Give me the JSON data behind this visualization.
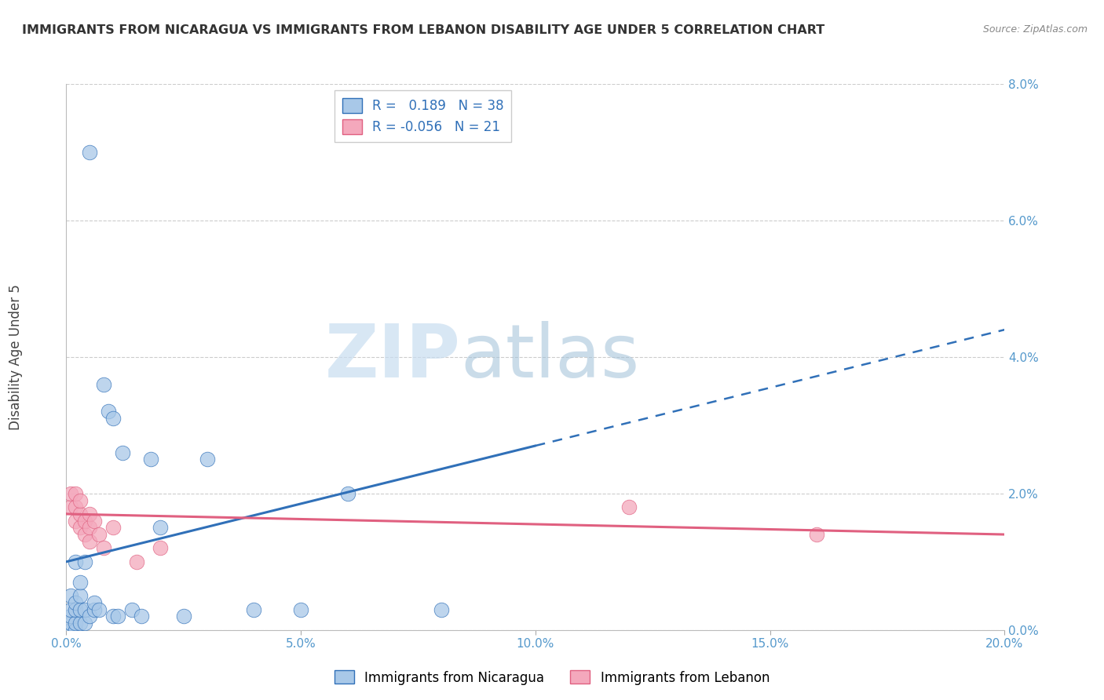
{
  "title": "IMMIGRANTS FROM NICARAGUA VS IMMIGRANTS FROM LEBANON DISABILITY AGE UNDER 5 CORRELATION CHART",
  "source": "Source: ZipAtlas.com",
  "ylabel": "Disability Age Under 5",
  "legend_labels": [
    "Immigrants from Nicaragua",
    "Immigrants from Lebanon"
  ],
  "r_nicaragua": 0.189,
  "n_nicaragua": 38,
  "r_lebanon": -0.056,
  "n_lebanon": 21,
  "nicaragua_color": "#a8c8e8",
  "lebanon_color": "#f4a8bc",
  "nicaragua_line_color": "#3070b8",
  "lebanon_line_color": "#e06080",
  "xlim": [
    0.0,
    0.2
  ],
  "ylim": [
    0.0,
    0.08
  ],
  "xticks": [
    0.0,
    0.05,
    0.1,
    0.15,
    0.2
  ],
  "yticks": [
    0.0,
    0.02,
    0.04,
    0.06,
    0.08
  ],
  "nicaragua_x": [
    0.001,
    0.001,
    0.001,
    0.001,
    0.001,
    0.002,
    0.002,
    0.002,
    0.002,
    0.002,
    0.003,
    0.003,
    0.003,
    0.003,
    0.004,
    0.004,
    0.004,
    0.005,
    0.005,
    0.006,
    0.006,
    0.007,
    0.008,
    0.009,
    0.01,
    0.012,
    0.014,
    0.016,
    0.018,
    0.02,
    0.025,
    0.03,
    0.04,
    0.05,
    0.06,
    0.08,
    0.01,
    0.011
  ],
  "nicaragua_y": [
    0.0,
    0.001,
    0.002,
    0.003,
    0.005,
    0.0,
    0.001,
    0.003,
    0.004,
    0.01,
    0.001,
    0.003,
    0.005,
    0.007,
    0.001,
    0.003,
    0.01,
    0.002,
    0.07,
    0.003,
    0.004,
    0.003,
    0.036,
    0.032,
    0.031,
    0.026,
    0.003,
    0.002,
    0.025,
    0.015,
    0.002,
    0.025,
    0.003,
    0.003,
    0.02,
    0.003,
    0.002,
    0.002
  ],
  "lebanon_x": [
    0.001,
    0.001,
    0.002,
    0.002,
    0.002,
    0.003,
    0.003,
    0.003,
    0.004,
    0.004,
    0.005,
    0.005,
    0.005,
    0.006,
    0.007,
    0.008,
    0.01,
    0.015,
    0.02,
    0.12,
    0.16
  ],
  "lebanon_y": [
    0.018,
    0.02,
    0.016,
    0.018,
    0.02,
    0.015,
    0.017,
    0.019,
    0.014,
    0.016,
    0.013,
    0.015,
    0.017,
    0.016,
    0.014,
    0.012,
    0.015,
    0.01,
    0.012,
    0.018,
    0.014
  ],
  "nic_line_x0": 0.0,
  "nic_line_y0": 0.01,
  "nic_line_x_solid_end": 0.1,
  "nic_line_y_solid_end": 0.027,
  "nic_line_x1": 0.2,
  "nic_line_y1": 0.044,
  "leb_line_x0": 0.0,
  "leb_line_y0": 0.017,
  "leb_line_x1": 0.2,
  "leb_line_y1": 0.014,
  "watermark_zip": "ZIP",
  "watermark_atlas": "atlas",
  "background_color": "#ffffff"
}
